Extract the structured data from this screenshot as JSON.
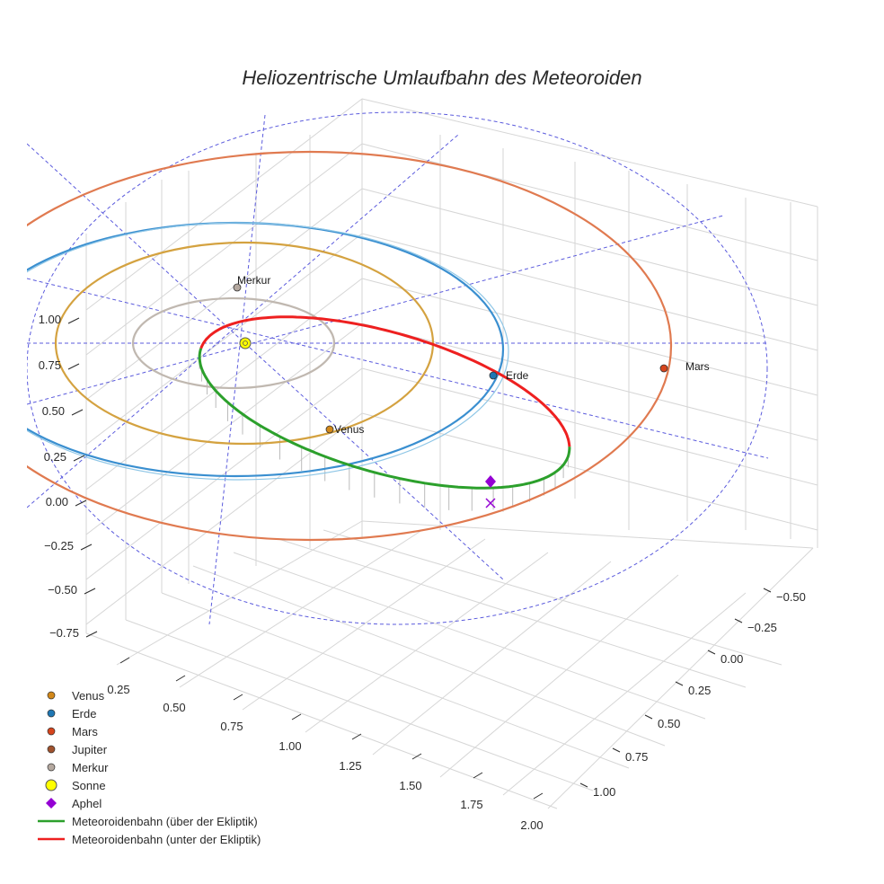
{
  "chart_data": {
    "type": "scatter3d",
    "title": "Heliozentrische Umlaufbahn des Meteoroiden",
    "axes": {
      "x_ticks": [
        "0.25",
        "0.50",
        "0.75",
        "1.00",
        "1.25",
        "1.50",
        "1.75",
        "2.00"
      ],
      "y_ticks": [
        "−0.50",
        "−0.25",
        "0.00",
        "0.25",
        "0.50",
        "0.75",
        "1.00"
      ],
      "z_ticks": [
        "1.00",
        "0.75",
        "0.50",
        "0.25",
        "0.00",
        "−0.25",
        "−0.50",
        "−0.75"
      ],
      "grid": true
    },
    "planets": [
      {
        "name": "Venus",
        "color": "#d2881a",
        "orbit_color": "#d4a240",
        "orbit_radius_au": 0.72
      },
      {
        "name": "Erde",
        "color": "#1f77b4",
        "orbit_color": "#3a8fd0",
        "orbit_radius_au": 1.0
      },
      {
        "name": "Mars",
        "color": "#d6441c",
        "orbit_color": "#e07a50",
        "orbit_radius_au": 1.52
      },
      {
        "name": "Jupiter",
        "color": "#a0522d"
      },
      {
        "name": "Merkur",
        "color": "#b5a9a0",
        "orbit_color": "#c0b8b0",
        "orbit_radius_au": 0.39
      }
    ],
    "point_labels": [
      "Merkur",
      "Venus",
      "Erde",
      "Mars"
    ],
    "sun": {
      "name": "Sonne",
      "color": "#ffff00"
    },
    "aphel": {
      "name": "Aphel",
      "color": "#9400d3"
    },
    "meteoroid": [
      {
        "name": "Meteoroidenbahn (über der Ekliptik)",
        "color": "#2ca02c"
      },
      {
        "name": "Meteoroidenbahn (unter der Ekliptik)",
        "color": "#ee2020"
      }
    ],
    "legend_position": "bottom-left"
  },
  "legend": {
    "items": [
      {
        "label": "Venus",
        "kind": "dot",
        "color": "#d2881a"
      },
      {
        "label": "Erde",
        "kind": "dot",
        "color": "#1f77b4"
      },
      {
        "label": "Mars",
        "kind": "dot",
        "color": "#d6441c"
      },
      {
        "label": "Jupiter",
        "kind": "dot",
        "color": "#a0522d"
      },
      {
        "label": "Merkur",
        "kind": "dot",
        "color": "#b5a9a0"
      },
      {
        "label": "Sonne",
        "kind": "bigdot",
        "color": "#ffff00"
      },
      {
        "label": "Aphel",
        "kind": "diamond",
        "color": "#9400d3"
      },
      {
        "label": "Meteoroidenbahn (über der Ekliptik)",
        "kind": "line",
        "color": "#2ca02c"
      },
      {
        "label": "Meteoroidenbahn (unter der Ekliptik)",
        "kind": "line",
        "color": "#ee2020"
      }
    ]
  }
}
